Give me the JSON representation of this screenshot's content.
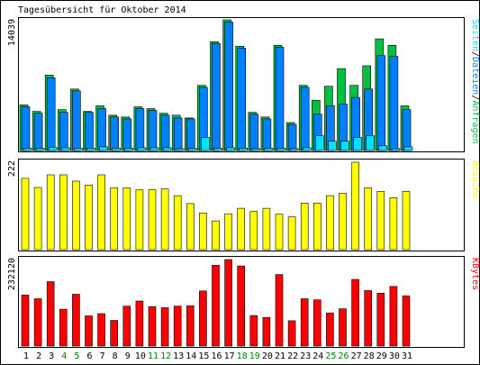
{
  "chart_data": {
    "type": "bar",
    "title": "Tagesübersicht für Oktober 2014",
    "categories": [
      "1",
      "2",
      "3",
      "4",
      "5",
      "6",
      "7",
      "8",
      "9",
      "10",
      "11",
      "12",
      "13",
      "14",
      "15",
      "16",
      "17",
      "18",
      "19",
      "20",
      "21",
      "22",
      "23",
      "24",
      "25",
      "26",
      "27",
      "28",
      "29",
      "30",
      "31"
    ],
    "weekend_days": [
      "4",
      "5",
      "11",
      "12",
      "18",
      "19",
      "25",
      "26"
    ],
    "colors": {
      "anfragen": "#00c040",
      "dateien": "#0080ff",
      "seiten": "#00e0ff",
      "besuche": "#ffff00",
      "kbytes": "#ff0000",
      "weekend_label": "#008000",
      "weekday_label": "#000000"
    },
    "panels": [
      {
        "id": "hits",
        "ymax_label": "14039",
        "ymax": 14039,
        "legend": [
          {
            "text": "Seiten",
            "color": "#00e0ff"
          },
          {
            "text": "/",
            "color": "#000000"
          },
          {
            "text": "Dateien",
            "color": "#0080ff"
          },
          {
            "text": "/",
            "color": "#000000"
          },
          {
            "text": "Anfragen",
            "color": "#00c040"
          }
        ],
        "series": [
          {
            "name": "Anfragen",
            "color": "#00c040",
            "values": [
              4900,
              4200,
              8100,
              4400,
              6600,
              4200,
              4800,
              3800,
              3600,
              4700,
              4500,
              4000,
              3800,
              3500,
              7000,
              11700,
              14039,
              11200,
              4100,
              3600,
              11300,
              3000,
              7000,
              5400,
              6900,
              8800,
              7000,
              9100,
              12000,
              11300,
              4800
            ]
          },
          {
            "name": "Dateien",
            "color": "#0080ff",
            "values": [
              4700,
              4000,
              7800,
              4100,
              6400,
              4100,
              4500,
              3600,
              3400,
              4500,
              4300,
              3800,
              3500,
              3400,
              6800,
              11500,
              13800,
              11000,
              3900,
              3400,
              11100,
              2800,
              6800,
              3900,
              4800,
              5000,
              5700,
              6600,
              10200,
              10100,
              4400
            ]
          },
          {
            "name": "Seiten",
            "color": "#00e0ff",
            "values": [
              250,
              250,
              350,
              300,
              250,
              250,
              400,
              250,
              250,
              300,
              300,
              300,
              200,
              250,
              1400,
              250,
              300,
              250,
              200,
              250,
              250,
              200,
              300,
              1600,
              1000,
              1000,
              1400,
              1600,
              500,
              200,
              400
            ]
          }
        ]
      },
      {
        "id": "visits",
        "ymax_label": "222",
        "ymax": 222,
        "legend": [
          {
            "text": "Besuche",
            "color": "#ffff00"
          }
        ],
        "series": [
          {
            "name": "Besuche",
            "color": "#ffff00",
            "values": [
              181,
              158,
              190,
              190,
              174,
              164,
              190,
              157,
              157,
              152,
              152,
              154,
              137,
              117,
              93,
              73,
              91,
              105,
              97,
              105,
              90,
              83,
              118,
              118,
              137,
              143,
              222,
              157,
              148,
              132,
              148
            ]
          }
        ]
      },
      {
        "id": "kbytes",
        "ymax_label": "232120",
        "ymax": 232120,
        "legend": [
          {
            "text": "KBytes",
            "color": "#ff0000"
          }
        ],
        "series": [
          {
            "name": "KBytes",
            "color": "#ff0000",
            "values": [
              137000,
              127000,
              173000,
              99000,
              139000,
              81000,
              87000,
              69000,
              107000,
              121000,
              106000,
              103000,
              107000,
              108000,
              148000,
              217000,
              232120,
              215000,
              82000,
              77000,
              192000,
              68000,
              127000,
              124000,
              89000,
              100000,
              179000,
              149000,
              142000,
              160000,
              135000
            ]
          }
        ]
      }
    ]
  }
}
